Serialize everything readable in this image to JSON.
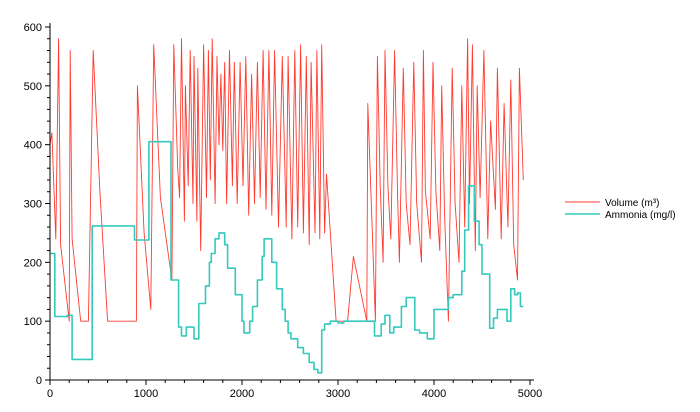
{
  "chart_data": {
    "type": "line",
    "title": "",
    "xlabel": "",
    "ylabel": "",
    "xlim": [
      0,
      5000
    ],
    "ylim": [
      0,
      600
    ],
    "x_ticks": [
      "0",
      "1000",
      "2000",
      "3000",
      "4000",
      "5000"
    ],
    "y_ticks": [
      "0",
      "100",
      "200",
      "300",
      "400",
      "500",
      "600"
    ],
    "grid": false,
    "legend_position": "right",
    "series": [
      {
        "name": "Volume (m³)",
        "color": "#ff3b30",
        "style": "sawtooth",
        "points": [
          [
            0,
            400
          ],
          [
            20,
            420
          ],
          [
            60,
            240
          ],
          [
            90,
            580
          ],
          [
            110,
            230
          ],
          [
            200,
            100
          ],
          [
            210,
            560
          ],
          [
            230,
            240
          ],
          [
            320,
            100
          ],
          [
            400,
            100
          ],
          [
            450,
            560
          ],
          [
            520,
            320
          ],
          [
            600,
            100
          ],
          [
            900,
            100
          ],
          [
            910,
            500
          ],
          [
            980,
            250
          ],
          [
            1050,
            120
          ],
          [
            1080,
            570
          ],
          [
            1150,
            310
          ],
          [
            1270,
            170
          ],
          [
            1290,
            570
          ],
          [
            1330,
            360
          ],
          [
            1350,
            310
          ],
          [
            1370,
            580
          ],
          [
            1400,
            270
          ],
          [
            1410,
            500
          ],
          [
            1440,
            330
          ],
          [
            1460,
            560
          ],
          [
            1490,
            300
          ],
          [
            1500,
            550
          ],
          [
            1530,
            270
          ],
          [
            1540,
            530
          ],
          [
            1570,
            220
          ],
          [
            1600,
            570
          ],
          [
            1630,
            310
          ],
          [
            1650,
            560
          ],
          [
            1670,
            340
          ],
          [
            1690,
            580
          ],
          [
            1720,
            300
          ],
          [
            1740,
            550
          ],
          [
            1760,
            400
          ],
          [
            1780,
            520
          ],
          [
            1800,
            390
          ],
          [
            1820,
            540
          ],
          [
            1840,
            300
          ],
          [
            1870,
            560
          ],
          [
            1900,
            330
          ],
          [
            1920,
            540
          ],
          [
            1950,
            300
          ],
          [
            1980,
            540
          ],
          [
            2010,
            330
          ],
          [
            2040,
            550
          ],
          [
            2070,
            280
          ],
          [
            2100,
            520
          ],
          [
            2130,
            300
          ],
          [
            2160,
            540
          ],
          [
            2190,
            310
          ],
          [
            2220,
            560
          ],
          [
            2250,
            290
          ],
          [
            2280,
            560
          ],
          [
            2310,
            280
          ],
          [
            2340,
            560
          ],
          [
            2380,
            260
          ],
          [
            2420,
            550
          ],
          [
            2460,
            260
          ],
          [
            2480,
            550
          ],
          [
            2520,
            240
          ],
          [
            2550,
            560
          ],
          [
            2580,
            260
          ],
          [
            2610,
            570
          ],
          [
            2640,
            250
          ],
          [
            2670,
            550
          ],
          [
            2700,
            230
          ],
          [
            2720,
            540
          ],
          [
            2760,
            250
          ],
          [
            2780,
            560
          ],
          [
            2810,
            240
          ],
          [
            2830,
            570
          ],
          [
            2860,
            250
          ],
          [
            2880,
            350
          ],
          [
            2980,
            100
          ],
          [
            3100,
            100
          ],
          [
            3160,
            210
          ],
          [
            3300,
            100
          ],
          [
            3310,
            470
          ],
          [
            3390,
            100
          ],
          [
            3410,
            550
          ],
          [
            3440,
            330
          ],
          [
            3470,
            200
          ],
          [
            3490,
            560
          ],
          [
            3520,
            330
          ],
          [
            3550,
            240
          ],
          [
            3590,
            560
          ],
          [
            3620,
            320
          ],
          [
            3640,
            200
          ],
          [
            3680,
            530
          ],
          [
            3710,
            300
          ],
          [
            3750,
            230
          ],
          [
            3790,
            540
          ],
          [
            3820,
            300
          ],
          [
            3870,
            200
          ],
          [
            3890,
            560
          ],
          [
            3910,
            320
          ],
          [
            3960,
            240
          ],
          [
            3990,
            540
          ],
          [
            4020,
            320
          ],
          [
            4060,
            220
          ],
          [
            4080,
            500
          ],
          [
            4110,
            280
          ],
          [
            4150,
            100
          ],
          [
            4190,
            530
          ],
          [
            4220,
            300
          ],
          [
            4260,
            200
          ],
          [
            4290,
            500
          ],
          [
            4320,
            260
          ],
          [
            4350,
            580
          ],
          [
            4370,
            300
          ],
          [
            4400,
            570
          ],
          [
            4430,
            220
          ],
          [
            4450,
            500
          ],
          [
            4480,
            310
          ],
          [
            4520,
            560
          ],
          [
            4560,
            240
          ],
          [
            4590,
            440
          ],
          [
            4640,
            290
          ],
          [
            4660,
            530
          ],
          [
            4700,
            240
          ],
          [
            4730,
            470
          ],
          [
            4770,
            260
          ],
          [
            4800,
            510
          ],
          [
            4830,
            230
          ],
          [
            4870,
            170
          ],
          [
            4890,
            530
          ],
          [
            4930,
            340
          ]
        ]
      },
      {
        "name": "Ammonia (mg/l)",
        "color": "#35c9bd",
        "style": "step",
        "points": [
          [
            0,
            215
          ],
          [
            50,
            215
          ],
          [
            50,
            108
          ],
          [
            180,
            108
          ],
          [
            180,
            110
          ],
          [
            230,
            110
          ],
          [
            230,
            35
          ],
          [
            440,
            35
          ],
          [
            440,
            262
          ],
          [
            880,
            262
          ],
          [
            880,
            238
          ],
          [
            1030,
            238
          ],
          [
            1030,
            405
          ],
          [
            1260,
            405
          ],
          [
            1260,
            170
          ],
          [
            1340,
            170
          ],
          [
            1340,
            90
          ],
          [
            1370,
            90
          ],
          [
            1370,
            75
          ],
          [
            1420,
            75
          ],
          [
            1420,
            90
          ],
          [
            1500,
            90
          ],
          [
            1500,
            70
          ],
          [
            1550,
            70
          ],
          [
            1550,
            130
          ],
          [
            1620,
            130
          ],
          [
            1620,
            160
          ],
          [
            1660,
            160
          ],
          [
            1660,
            200
          ],
          [
            1680,
            200
          ],
          [
            1680,
            215
          ],
          [
            1720,
            215
          ],
          [
            1720,
            240
          ],
          [
            1760,
            240
          ],
          [
            1760,
            250
          ],
          [
            1820,
            250
          ],
          [
            1820,
            230
          ],
          [
            1850,
            230
          ],
          [
            1850,
            190
          ],
          [
            1930,
            190
          ],
          [
            1930,
            145
          ],
          [
            2000,
            145
          ],
          [
            2000,
            100
          ],
          [
            2020,
            100
          ],
          [
            2020,
            80
          ],
          [
            2080,
            80
          ],
          [
            2080,
            100
          ],
          [
            2110,
            100
          ],
          [
            2110,
            125
          ],
          [
            2160,
            125
          ],
          [
            2160,
            170
          ],
          [
            2210,
            170
          ],
          [
            2210,
            210
          ],
          [
            2230,
            210
          ],
          [
            2230,
            240
          ],
          [
            2310,
            240
          ],
          [
            2310,
            200
          ],
          [
            2360,
            200
          ],
          [
            2360,
            155
          ],
          [
            2420,
            155
          ],
          [
            2420,
            120
          ],
          [
            2450,
            120
          ],
          [
            2450,
            100
          ],
          [
            2480,
            100
          ],
          [
            2480,
            80
          ],
          [
            2510,
            80
          ],
          [
            2510,
            70
          ],
          [
            2580,
            70
          ],
          [
            2580,
            55
          ],
          [
            2640,
            55
          ],
          [
            2640,
            45
          ],
          [
            2700,
            45
          ],
          [
            2700,
            30
          ],
          [
            2750,
            30
          ],
          [
            2750,
            18
          ],
          [
            2790,
            18
          ],
          [
            2790,
            12
          ],
          [
            2830,
            12
          ],
          [
            2830,
            85
          ],
          [
            2860,
            85
          ],
          [
            2860,
            95
          ],
          [
            2920,
            95
          ],
          [
            2920,
            100
          ],
          [
            3000,
            100
          ],
          [
            3000,
            97
          ],
          [
            3060,
            97
          ],
          [
            3060,
            100
          ],
          [
            3380,
            100
          ],
          [
            3380,
            75
          ],
          [
            3450,
            75
          ],
          [
            3450,
            95
          ],
          [
            3490,
            95
          ],
          [
            3490,
            110
          ],
          [
            3540,
            110
          ],
          [
            3540,
            80
          ],
          [
            3580,
            80
          ],
          [
            3580,
            90
          ],
          [
            3660,
            90
          ],
          [
            3660,
            125
          ],
          [
            3710,
            125
          ],
          [
            3710,
            140
          ],
          [
            3800,
            140
          ],
          [
            3800,
            85
          ],
          [
            3850,
            85
          ],
          [
            3850,
            80
          ],
          [
            3930,
            80
          ],
          [
            3930,
            70
          ],
          [
            4000,
            70
          ],
          [
            4000,
            120
          ],
          [
            4150,
            120
          ],
          [
            4150,
            140
          ],
          [
            4200,
            140
          ],
          [
            4200,
            145
          ],
          [
            4290,
            145
          ],
          [
            4290,
            185
          ],
          [
            4320,
            185
          ],
          [
            4320,
            255
          ],
          [
            4360,
            255
          ],
          [
            4360,
            330
          ],
          [
            4420,
            330
          ],
          [
            4420,
            270
          ],
          [
            4470,
            270
          ],
          [
            4470,
            230
          ],
          [
            4500,
            230
          ],
          [
            4500,
            180
          ],
          [
            4580,
            180
          ],
          [
            4580,
            88
          ],
          [
            4620,
            88
          ],
          [
            4620,
            105
          ],
          [
            4660,
            105
          ],
          [
            4660,
            120
          ],
          [
            4760,
            120
          ],
          [
            4760,
            100
          ],
          [
            4800,
            100
          ],
          [
            4800,
            155
          ],
          [
            4840,
            155
          ],
          [
            4840,
            145
          ],
          [
            4870,
            145
          ],
          [
            4870,
            148
          ],
          [
            4900,
            148
          ],
          [
            4900,
            125
          ],
          [
            4930,
            125
          ]
        ]
      }
    ]
  }
}
